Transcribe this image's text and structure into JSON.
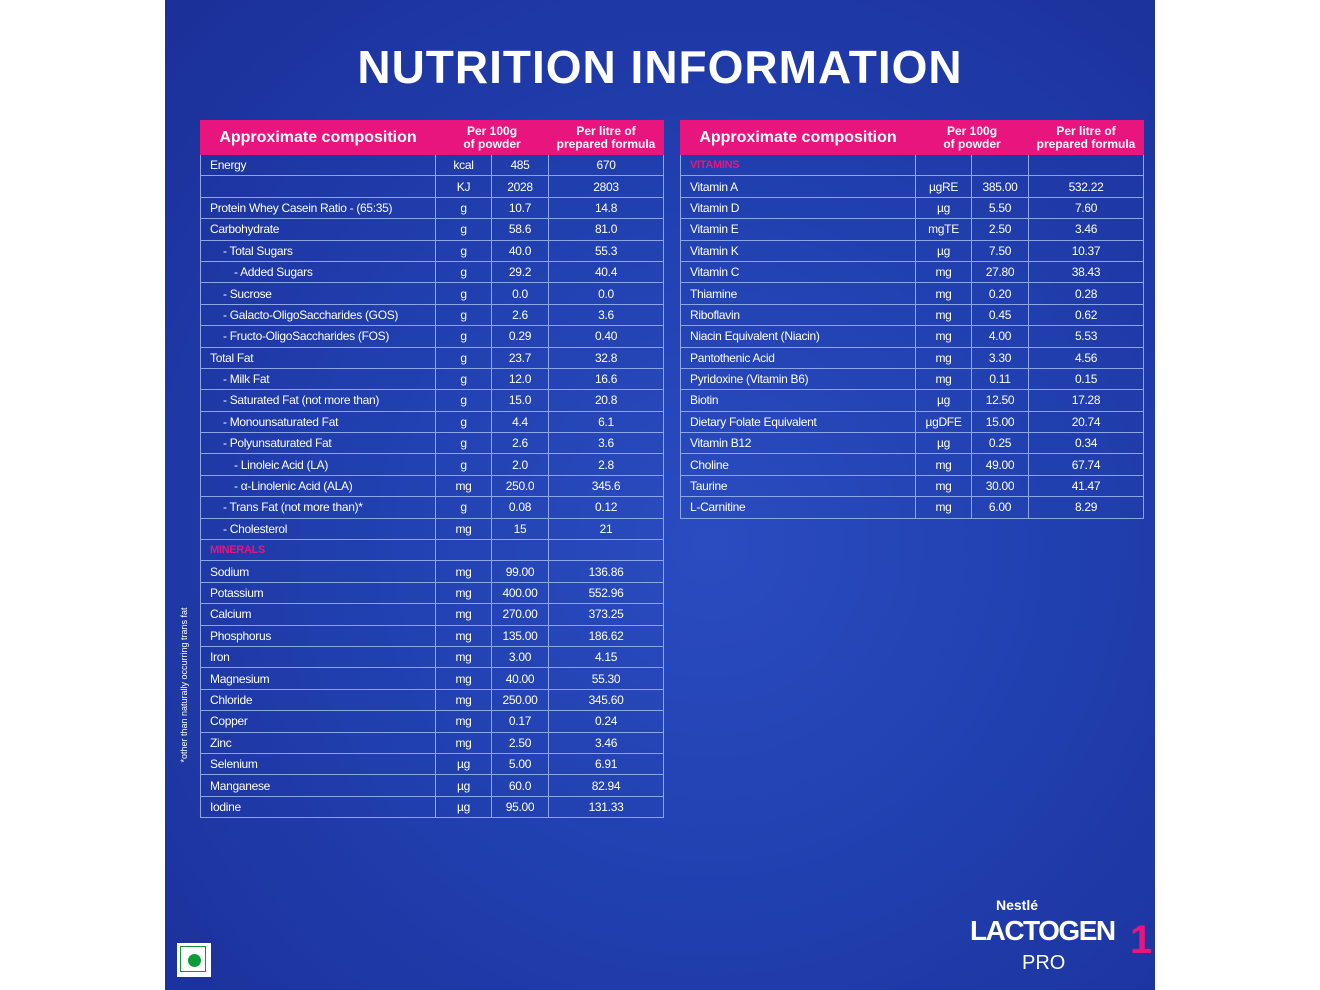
{
  "title": "NUTRITION INFORMATION",
  "colors": {
    "background": "#2140b0",
    "accent": "#e8157f",
    "veg_mark": "#0a9d3a"
  },
  "headers": {
    "composition": "Approximate composition",
    "per100_l1": "Per 100g",
    "per100_l2": "of powder",
    "perl_l1": "Per litre of",
    "perl_l2": "prepared formula"
  },
  "left_rows": [
    {
      "name": "Energy",
      "unit": "kcal",
      "p100": "485",
      "pl": "670",
      "level": 0
    },
    {
      "name": "",
      "unit": "KJ",
      "p100": "2028",
      "pl": "2803",
      "level": 0
    },
    {
      "name": "Protein Whey Casein Ratio - (65:35)",
      "unit": "g",
      "p100": "10.7",
      "pl": "14.8",
      "level": 0
    },
    {
      "name": "Carbohydrate",
      "unit": "g",
      "p100": "58.6",
      "pl": "81.0",
      "level": 0
    },
    {
      "name": "- Total Sugars",
      "unit": "g",
      "p100": "40.0",
      "pl": "55.3",
      "level": 1
    },
    {
      "name": "- Added Sugars",
      "unit": "g",
      "p100": "29.2",
      "pl": "40.4",
      "level": 2
    },
    {
      "name": "- Sucrose",
      "unit": "g",
      "p100": "0.0",
      "pl": "0.0",
      "level": 1
    },
    {
      "name": "- Galacto-OligoSaccharides (GOS)",
      "unit": "g",
      "p100": "2.6",
      "pl": "3.6",
      "level": 1
    },
    {
      "name": "- Fructo-OligoSaccharides (FOS)",
      "unit": "g",
      "p100": "0.29",
      "pl": "0.40",
      "level": 1
    },
    {
      "name": "Total Fat",
      "unit": "g",
      "p100": "23.7",
      "pl": "32.8",
      "level": 0
    },
    {
      "name": "- Milk Fat",
      "unit": "g",
      "p100": "12.0",
      "pl": "16.6",
      "level": 1
    },
    {
      "name": "- Saturated Fat (not more than)",
      "unit": "g",
      "p100": "15.0",
      "pl": "20.8",
      "level": 1
    },
    {
      "name": "- Monounsaturated Fat",
      "unit": "g",
      "p100": "4.4",
      "pl": "6.1",
      "level": 1
    },
    {
      "name": "- Polyunsaturated Fat",
      "unit": "g",
      "p100": "2.6",
      "pl": "3.6",
      "level": 1
    },
    {
      "name": "- Linoleic Acid (LA)",
      "unit": "g",
      "p100": "2.0",
      "pl": "2.8",
      "level": 2
    },
    {
      "name": "- α-Linolenic Acid (ALA)",
      "unit": "mg",
      "p100": "250.0",
      "pl": "345.6",
      "level": 2
    },
    {
      "name": "- Trans Fat (not more than)*",
      "unit": "g",
      "p100": "0.08",
      "pl": "0.12",
      "level": 1
    },
    {
      "name": "- Cholesterol",
      "unit": "mg",
      "p100": "15",
      "pl": "21",
      "level": 1
    },
    {
      "name": "MINERALS",
      "unit": "",
      "p100": "",
      "pl": "",
      "section": true
    },
    {
      "name": "Sodium",
      "unit": "mg",
      "p100": "99.00",
      "pl": "136.86",
      "level": 0
    },
    {
      "name": "Potassium",
      "unit": "mg",
      "p100": "400.00",
      "pl": "552.96",
      "level": 0
    },
    {
      "name": "Calcium",
      "unit": "mg",
      "p100": "270.00",
      "pl": "373.25",
      "level": 0
    },
    {
      "name": "Phosphorus",
      "unit": "mg",
      "p100": "135.00",
      "pl": "186.62",
      "level": 0
    },
    {
      "name": "Iron",
      "unit": "mg",
      "p100": "3.00",
      "pl": "4.15",
      "level": 0
    },
    {
      "name": "Magnesium",
      "unit": "mg",
      "p100": "40.00",
      "pl": "55.30",
      "level": 0
    },
    {
      "name": "Chloride",
      "unit": "mg",
      "p100": "250.00",
      "pl": "345.60",
      "level": 0
    },
    {
      "name": "Copper",
      "unit": "mg",
      "p100": "0.17",
      "pl": "0.24",
      "level": 0
    },
    {
      "name": "Zinc",
      "unit": "mg",
      "p100": "2.50",
      "pl": "3.46",
      "level": 0
    },
    {
      "name": "Selenium",
      "unit": "µg",
      "p100": "5.00",
      "pl": "6.91",
      "level": 0
    },
    {
      "name": "Manganese",
      "unit": "µg",
      "p100": "60.0",
      "pl": "82.94",
      "level": 0
    },
    {
      "name": "Iodine",
      "unit": "µg",
      "p100": "95.00",
      "pl": "131.33",
      "level": 0
    }
  ],
  "right_rows": [
    {
      "name": "VITAMINS",
      "unit": "",
      "p100": "",
      "pl": "",
      "section": true
    },
    {
      "name": "Vitamin A",
      "unit": "µgRE",
      "p100": "385.00",
      "pl": "532.22",
      "level": 0
    },
    {
      "name": "Vitamin D",
      "unit": "µg",
      "p100": "5.50",
      "pl": "7.60",
      "level": 0
    },
    {
      "name": "Vitamin E",
      "unit": "mgTE",
      "p100": "2.50",
      "pl": "3.46",
      "level": 0
    },
    {
      "name": "Vitamin K",
      "unit": "µg",
      "p100": "7.50",
      "pl": "10.37",
      "level": 0
    },
    {
      "name": "Vitamin C",
      "unit": "mg",
      "p100": "27.80",
      "pl": "38.43",
      "level": 0
    },
    {
      "name": "Thiamine",
      "unit": "mg",
      "p100": "0.20",
      "pl": "0.28",
      "level": 0
    },
    {
      "name": "Riboflavin",
      "unit": "mg",
      "p100": "0.45",
      "pl": "0.62",
      "level": 0
    },
    {
      "name": "Niacin Equivalent (Niacin)",
      "unit": "mg",
      "p100": "4.00",
      "pl": "5.53",
      "level": 0
    },
    {
      "name": "Pantothenic Acid",
      "unit": "mg",
      "p100": "3.30",
      "pl": "4.56",
      "level": 0
    },
    {
      "name": "Pyridoxine (Vitamin B6)",
      "unit": "mg",
      "p100": "0.11",
      "pl": "0.15",
      "level": 0
    },
    {
      "name": "Biotin",
      "unit": "µg",
      "p100": "12.50",
      "pl": "17.28",
      "level": 0
    },
    {
      "name": "Dietary Folate Equivalent",
      "unit": "µgDFE",
      "p100": "15.00",
      "pl": "20.74",
      "level": 0
    },
    {
      "name": "Vitamin B12",
      "unit": "µg",
      "p100": "0.25",
      "pl": "0.34",
      "level": 0
    },
    {
      "name": "Choline",
      "unit": "mg",
      "p100": "49.00",
      "pl": "67.74",
      "level": 0
    },
    {
      "name": "Taurine",
      "unit": "mg",
      "p100": "30.00",
      "pl": "41.47",
      "level": 0
    },
    {
      "name": "L-Carnitine",
      "unit": "mg",
      "p100": "6.00",
      "pl": "8.29",
      "level": 0
    }
  ],
  "footnote": "*other than naturally occurring trans fat",
  "brand": {
    "maker": "Nestlé",
    "product": "LACTOGEN",
    "variant": "PRO",
    "stage": "1"
  }
}
